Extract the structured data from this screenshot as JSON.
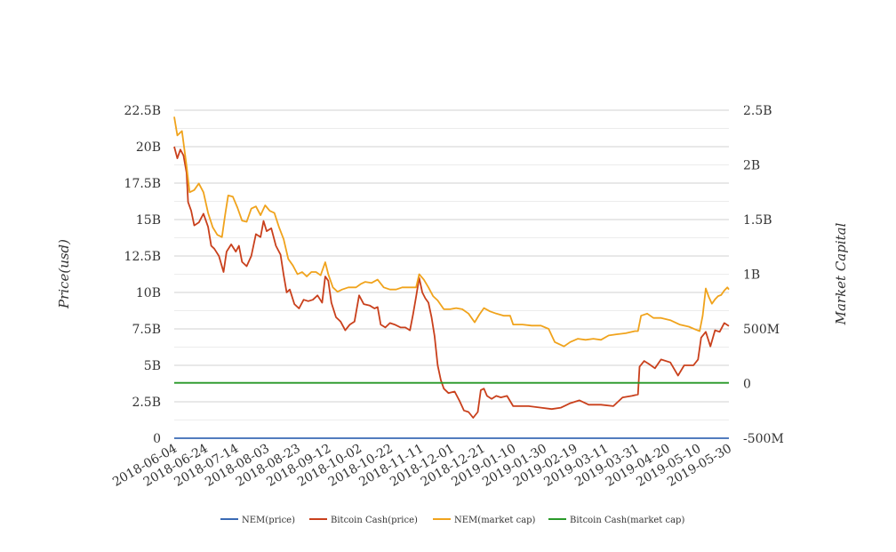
{
  "chart_data": {
    "type": "line",
    "title": "",
    "ylabel_left": "Price(usd)",
    "ylabel_right": "Market Capital",
    "x_tick_labels": [
      "2018-06-04",
      "2018-06-24",
      "2018-07-14",
      "2018-08-03",
      "2018-08-23",
      "2018-09-12",
      "2018-10-02",
      "2018-10-22",
      "2018-11-11",
      "2018-12-01",
      "2018-12-21",
      "2019-01-10",
      "2019-01-30",
      "2019-02-19",
      "2019-03-11",
      "2019-03-31",
      "2019-04-20",
      "2019-05-10",
      "2019-05-30"
    ],
    "xlim": [
      "2018-06-04",
      "2019-05-30"
    ],
    "y_left_ticks": [
      "0",
      "2.5B",
      "5B",
      "7.5B",
      "10B",
      "12.5B",
      "15B",
      "17.5B",
      "20B",
      "22.5B"
    ],
    "y_left_values": [
      0,
      2500000000,
      5000000000,
      7500000000,
      10000000000,
      12500000000,
      15000000000,
      17500000000,
      20000000000,
      22500000000
    ],
    "ylim_left": [
      0,
      22500000000
    ],
    "y_right_ticks": [
      "-500M",
      "0",
      "500M",
      "1B",
      "1.5B",
      "2B",
      "2.5B"
    ],
    "y_right_values": [
      -500000000,
      0,
      500000000,
      1000000000,
      1500000000,
      2000000000,
      2500000000
    ],
    "ylim_right": [
      -500000000,
      2500000000
    ],
    "grid": true,
    "legend_position": "bottom",
    "series": [
      {
        "name": "NEM(price)",
        "color": "#3a6ab4",
        "axis": "left",
        "points": [
          [
            "2018-06-04",
            0
          ],
          [
            "2019-05-30",
            0
          ]
        ]
      },
      {
        "name": "Bitcoin Cash(price)",
        "color": "#c9401c",
        "axis": "left",
        "points": [
          [
            "2018-06-04",
            20000000000
          ],
          [
            "2018-06-06",
            19200000000
          ],
          [
            "2018-06-08",
            19800000000
          ],
          [
            "2018-06-10",
            19400000000
          ],
          [
            "2018-06-12",
            18200000000
          ],
          [
            "2018-06-13",
            16200000000
          ],
          [
            "2018-06-15",
            15600000000
          ],
          [
            "2018-06-17",
            14600000000
          ],
          [
            "2018-06-20",
            14800000000
          ],
          [
            "2018-06-23",
            15400000000
          ],
          [
            "2018-06-26",
            14500000000
          ],
          [
            "2018-06-28",
            13200000000
          ],
          [
            "2018-06-30",
            13000000000
          ],
          [
            "2018-07-03",
            12500000000
          ],
          [
            "2018-07-06",
            11400000000
          ],
          [
            "2018-07-08",
            12800000000
          ],
          [
            "2018-07-11",
            13300000000
          ],
          [
            "2018-07-14",
            12800000000
          ],
          [
            "2018-07-16",
            13200000000
          ],
          [
            "2018-07-18",
            12100000000
          ],
          [
            "2018-07-21",
            11800000000
          ],
          [
            "2018-07-24",
            12500000000
          ],
          [
            "2018-07-27",
            14000000000
          ],
          [
            "2018-07-30",
            13800000000
          ],
          [
            "2018-08-01",
            14900000000
          ],
          [
            "2018-08-03",
            14200000000
          ],
          [
            "2018-08-06",
            14400000000
          ],
          [
            "2018-08-09",
            13200000000
          ],
          [
            "2018-08-12",
            12600000000
          ],
          [
            "2018-08-14",
            11200000000
          ],
          [
            "2018-08-16",
            10000000000
          ],
          [
            "2018-08-18",
            10200000000
          ],
          [
            "2018-08-21",
            9200000000
          ],
          [
            "2018-08-24",
            8900000000
          ],
          [
            "2018-08-27",
            9500000000
          ],
          [
            "2018-08-30",
            9400000000
          ],
          [
            "2018-09-02",
            9500000000
          ],
          [
            "2018-09-05",
            9800000000
          ],
          [
            "2018-09-08",
            9300000000
          ],
          [
            "2018-09-10",
            11100000000
          ],
          [
            "2018-09-12",
            10800000000
          ],
          [
            "2018-09-14",
            9300000000
          ],
          [
            "2018-09-17",
            8300000000
          ],
          [
            "2018-09-20",
            8000000000
          ],
          [
            "2018-09-23",
            7400000000
          ],
          [
            "2018-09-26",
            7800000000
          ],
          [
            "2018-09-29",
            8000000000
          ],
          [
            "2018-10-02",
            9800000000
          ],
          [
            "2018-10-05",
            9200000000
          ],
          [
            "2018-10-09",
            9100000000
          ],
          [
            "2018-10-12",
            8900000000
          ],
          [
            "2018-10-14",
            9000000000
          ],
          [
            "2018-10-16",
            7800000000
          ],
          [
            "2018-10-19",
            7600000000
          ],
          [
            "2018-10-22",
            7900000000
          ],
          [
            "2018-10-25",
            7800000000
          ],
          [
            "2018-10-29",
            7600000000
          ],
          [
            "2018-11-01",
            7600000000
          ],
          [
            "2018-11-04",
            7400000000
          ],
          [
            "2018-11-06",
            8500000000
          ],
          [
            "2018-11-08",
            9700000000
          ],
          [
            "2018-11-10",
            11000000000
          ],
          [
            "2018-11-12",
            10000000000
          ],
          [
            "2018-11-14",
            9600000000
          ],
          [
            "2018-11-16",
            9300000000
          ],
          [
            "2018-11-18",
            8300000000
          ],
          [
            "2018-11-20",
            7000000000
          ],
          [
            "2018-11-22",
            5000000000
          ],
          [
            "2018-11-24",
            4000000000
          ],
          [
            "2018-11-26",
            3400000000
          ],
          [
            "2018-11-29",
            3100000000
          ],
          [
            "2018-12-03",
            3200000000
          ],
          [
            "2018-12-06",
            2600000000
          ],
          [
            "2018-12-09",
            1900000000
          ],
          [
            "2018-12-12",
            1800000000
          ],
          [
            "2018-12-15",
            1400000000
          ],
          [
            "2018-12-18",
            1800000000
          ],
          [
            "2018-12-20",
            3300000000
          ],
          [
            "2018-12-22",
            3400000000
          ],
          [
            "2018-12-24",
            2900000000
          ],
          [
            "2018-12-27",
            2700000000
          ],
          [
            "2018-12-30",
            2900000000
          ],
          [
            "2019-01-02",
            2800000000
          ],
          [
            "2019-01-06",
            2900000000
          ],
          [
            "2019-01-10",
            2200000000
          ],
          [
            "2019-01-14",
            2200000000
          ],
          [
            "2019-01-20",
            2200000000
          ],
          [
            "2019-01-28",
            2100000000
          ],
          [
            "2019-02-04",
            2000000000
          ],
          [
            "2019-02-10",
            2100000000
          ],
          [
            "2019-02-16",
            2400000000
          ],
          [
            "2019-02-22",
            2600000000
          ],
          [
            "2019-02-28",
            2300000000
          ],
          [
            "2019-03-08",
            2300000000
          ],
          [
            "2019-03-16",
            2200000000
          ],
          [
            "2019-03-22",
            2800000000
          ],
          [
            "2019-03-28",
            2900000000
          ],
          [
            "2019-04-01",
            3000000000
          ],
          [
            "2019-04-02",
            4900000000
          ],
          [
            "2019-04-05",
            5300000000
          ],
          [
            "2019-04-08",
            5100000000
          ],
          [
            "2019-04-12",
            4800000000
          ],
          [
            "2019-04-16",
            5400000000
          ],
          [
            "2019-04-22",
            5200000000
          ],
          [
            "2019-04-27",
            4300000000
          ],
          [
            "2019-05-01",
            5000000000
          ],
          [
            "2019-05-07",
            5000000000
          ],
          [
            "2019-05-10",
            5400000000
          ],
          [
            "2019-05-12",
            6900000000
          ],
          [
            "2019-05-15",
            7300000000
          ],
          [
            "2019-05-18",
            6300000000
          ],
          [
            "2019-05-21",
            7400000000
          ],
          [
            "2019-05-24",
            7300000000
          ],
          [
            "2019-05-27",
            7900000000
          ],
          [
            "2019-05-30",
            7700000000
          ]
        ]
      },
      {
        "name": "NEM(market cap)",
        "color": "#f0a31c",
        "axis": "right",
        "points": [
          [
            "2018-06-04",
            2440000000
          ],
          [
            "2018-06-06",
            2270000000
          ],
          [
            "2018-06-09",
            2310000000
          ],
          [
            "2018-06-12",
            1990000000
          ],
          [
            "2018-06-14",
            1750000000
          ],
          [
            "2018-06-17",
            1770000000
          ],
          [
            "2018-06-20",
            1830000000
          ],
          [
            "2018-06-23",
            1750000000
          ],
          [
            "2018-06-26",
            1560000000
          ],
          [
            "2018-06-29",
            1430000000
          ],
          [
            "2018-07-02",
            1360000000
          ],
          [
            "2018-07-05",
            1340000000
          ],
          [
            "2018-07-07",
            1540000000
          ],
          [
            "2018-07-09",
            1720000000
          ],
          [
            "2018-07-12",
            1710000000
          ],
          [
            "2018-07-15",
            1610000000
          ],
          [
            "2018-07-18",
            1490000000
          ],
          [
            "2018-07-21",
            1480000000
          ],
          [
            "2018-07-24",
            1600000000
          ],
          [
            "2018-07-27",
            1620000000
          ],
          [
            "2018-07-30",
            1540000000
          ],
          [
            "2018-08-02",
            1630000000
          ],
          [
            "2018-08-05",
            1580000000
          ],
          [
            "2018-08-08",
            1560000000
          ],
          [
            "2018-08-11",
            1430000000
          ],
          [
            "2018-08-14",
            1320000000
          ],
          [
            "2018-08-17",
            1140000000
          ],
          [
            "2018-08-20",
            1080000000
          ],
          [
            "2018-08-23",
            1000000000
          ],
          [
            "2018-08-26",
            1020000000
          ],
          [
            "2018-08-29",
            980000000
          ],
          [
            "2018-09-01",
            1020000000
          ],
          [
            "2018-09-04",
            1020000000
          ],
          [
            "2018-09-07",
            990000000
          ],
          [
            "2018-09-10",
            1110000000
          ],
          [
            "2018-09-12",
            1000000000
          ],
          [
            "2018-09-15",
            880000000
          ],
          [
            "2018-09-18",
            840000000
          ],
          [
            "2018-09-21",
            860000000
          ],
          [
            "2018-09-25",
            880000000
          ],
          [
            "2018-09-30",
            880000000
          ],
          [
            "2018-10-03",
            910000000
          ],
          [
            "2018-10-06",
            930000000
          ],
          [
            "2018-10-10",
            920000000
          ],
          [
            "2018-10-14",
            950000000
          ],
          [
            "2018-10-18",
            880000000
          ],
          [
            "2018-10-22",
            860000000
          ],
          [
            "2018-10-26",
            860000000
          ],
          [
            "2018-10-30",
            880000000
          ],
          [
            "2018-11-04",
            880000000
          ],
          [
            "2018-11-08",
            880000000
          ],
          [
            "2018-11-10",
            1000000000
          ],
          [
            "2018-11-13",
            950000000
          ],
          [
            "2018-11-16",
            880000000
          ],
          [
            "2018-11-19",
            800000000
          ],
          [
            "2018-11-22",
            760000000
          ],
          [
            "2018-11-26",
            680000000
          ],
          [
            "2018-11-30",
            680000000
          ],
          [
            "2018-12-04",
            690000000
          ],
          [
            "2018-12-08",
            680000000
          ],
          [
            "2018-12-12",
            640000000
          ],
          [
            "2018-12-16",
            560000000
          ],
          [
            "2018-12-19",
            630000000
          ],
          [
            "2018-12-22",
            690000000
          ],
          [
            "2018-12-26",
            660000000
          ],
          [
            "2018-12-30",
            640000000
          ],
          [
            "2019-01-04",
            620000000
          ],
          [
            "2019-01-08",
            620000000
          ],
          [
            "2019-01-10",
            540000000
          ],
          [
            "2019-01-16",
            540000000
          ],
          [
            "2019-01-22",
            530000000
          ],
          [
            "2019-01-28",
            530000000
          ],
          [
            "2019-02-02",
            500000000
          ],
          [
            "2019-02-06",
            380000000
          ],
          [
            "2019-02-12",
            340000000
          ],
          [
            "2019-02-16",
            380000000
          ],
          [
            "2019-02-21",
            410000000
          ],
          [
            "2019-02-26",
            400000000
          ],
          [
            "2019-03-03",
            410000000
          ],
          [
            "2019-03-08",
            400000000
          ],
          [
            "2019-03-13",
            440000000
          ],
          [
            "2019-03-18",
            450000000
          ],
          [
            "2019-03-24",
            460000000
          ],
          [
            "2019-03-30",
            480000000
          ],
          [
            "2019-04-01",
            480000000
          ],
          [
            "2019-04-03",
            620000000
          ],
          [
            "2019-04-07",
            640000000
          ],
          [
            "2019-04-11",
            600000000
          ],
          [
            "2019-04-16",
            600000000
          ],
          [
            "2019-04-22",
            580000000
          ],
          [
            "2019-04-28",
            540000000
          ],
          [
            "2019-05-04",
            520000000
          ],
          [
            "2019-05-09",
            490000000
          ],
          [
            "2019-05-11",
            480000000
          ],
          [
            "2019-05-13",
            620000000
          ],
          [
            "2019-05-15",
            870000000
          ],
          [
            "2019-05-17",
            790000000
          ],
          [
            "2019-05-19",
            730000000
          ],
          [
            "2019-05-21",
            770000000
          ],
          [
            "2019-05-23",
            800000000
          ],
          [
            "2019-05-25",
            810000000
          ],
          [
            "2019-05-27",
            850000000
          ],
          [
            "2019-05-29",
            880000000
          ],
          [
            "2019-05-30",
            860000000
          ]
        ]
      },
      {
        "name": "Bitcoin Cash(market cap)",
        "color": "#2a9a2a",
        "axis": "left",
        "points": [
          [
            "2018-06-04",
            3800000000
          ],
          [
            "2019-05-30",
            3800000000
          ]
        ]
      }
    ]
  }
}
